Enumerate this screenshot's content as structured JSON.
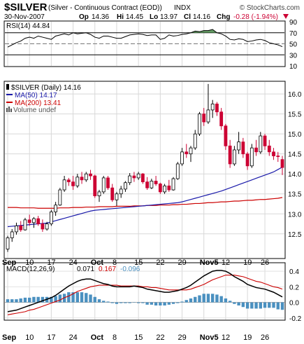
{
  "header": {
    "symbol": "$SILVER",
    "description": "(Silver - Continuous Contract (EOD))",
    "exchange": "INDX",
    "watermark": "© StockCharts.com",
    "date": "30-Nov-2007",
    "quote": {
      "open_label": "Op",
      "open": "14.36",
      "high_label": "Hi",
      "high": "14.45",
      "low_label": "Lo",
      "low": "13.97",
      "close_label": "Cl",
      "close": "14.16",
      "chg_label": "Chg",
      "chg": "-0.28 (-1.94%)",
      "chg_icon": "down-triangle-icon"
    }
  },
  "x_axis": {
    "labels": [
      "Sep",
      "10",
      "17",
      "24",
      "Oct",
      "8",
      "15",
      "22",
      "29",
      "Nov5",
      "12",
      "19",
      "26"
    ],
    "label_dates": [
      "2007-08-31",
      "2007-09-10",
      "2007-09-17",
      "2007-09-24",
      "2007-10-01",
      "2007-10-08",
      "2007-10-15",
      "2007-10-22",
      "2007-10-29",
      "2007-11-05",
      "2007-11-12",
      "2007-11-19",
      "2007-11-26"
    ],
    "bold_labels": [
      "Sep",
      "Oct",
      "Nov5"
    ]
  },
  "chart_data": [
    {
      "type": "line",
      "panel": "RSI",
      "legend": [
        {
          "text": "RSI(14) 44.84",
          "color": "#000000"
        }
      ],
      "ylim": [
        10,
        90
      ],
      "y_ticks": [
        10,
        30,
        50,
        70,
        90
      ],
      "reference_lines": [
        30,
        50,
        70
      ],
      "overbought_fill_color": "#4a8a4a",
      "dates": [
        "2007-08-31",
        "2007-09-04",
        "2007-09-05",
        "2007-09-06",
        "2007-09-07",
        "2007-09-10",
        "2007-09-11",
        "2007-09-12",
        "2007-09-13",
        "2007-09-14",
        "2007-09-17",
        "2007-09-18",
        "2007-09-19",
        "2007-09-20",
        "2007-09-21",
        "2007-09-24",
        "2007-09-25",
        "2007-09-26",
        "2007-09-27",
        "2007-09-28",
        "2007-10-01",
        "2007-10-02",
        "2007-10-03",
        "2007-10-04",
        "2007-10-05",
        "2007-10-08",
        "2007-10-09",
        "2007-10-10",
        "2007-10-11",
        "2007-10-12",
        "2007-10-15",
        "2007-10-16",
        "2007-10-17",
        "2007-10-18",
        "2007-10-19",
        "2007-10-22",
        "2007-10-23",
        "2007-10-24",
        "2007-10-25",
        "2007-10-26",
        "2007-10-29",
        "2007-10-30",
        "2007-10-31",
        "2007-11-01",
        "2007-11-02",
        "2007-11-05",
        "2007-11-06",
        "2007-11-07",
        "2007-11-08",
        "2007-11-09",
        "2007-11-12",
        "2007-11-13",
        "2007-11-14",
        "2007-11-15",
        "2007-11-16",
        "2007-11-19",
        "2007-11-20",
        "2007-11-21",
        "2007-11-23",
        "2007-11-26",
        "2007-11-27",
        "2007-11-28",
        "2007-11-29",
        "2007-11-30"
      ],
      "values": [
        44,
        48,
        52,
        55,
        60,
        62,
        60,
        64,
        62,
        60,
        58,
        64,
        66,
        68,
        66,
        70,
        68,
        69,
        70,
        67,
        62,
        60,
        64,
        64,
        62,
        60,
        60,
        63,
        66,
        67,
        68,
        67,
        65,
        66,
        66,
        58,
        60,
        66,
        64,
        65,
        67,
        68,
        70,
        73,
        72,
        74,
        74,
        76,
        70,
        68,
        64,
        58,
        57,
        59,
        58,
        54,
        55,
        57,
        58,
        56,
        52,
        50,
        48,
        44.84
      ]
    },
    {
      "type": "candlestick",
      "panel": "price",
      "legend": [
        {
          "text": "$SILVER (Daily) 14.16",
          "color": "#000000",
          "icon": "price-swatch-icon"
        },
        {
          "text": "MA(50) 14.17",
          "color": "#1a1aaa"
        },
        {
          "text": "MA(200) 13.41",
          "color": "#cc0000"
        },
        {
          "text": "Volume undef",
          "color": "#000000",
          "icon": "volume-bars-icon"
        }
      ],
      "ylim": [
        11.9,
        16.3
      ],
      "y_ticks": [
        12.5,
        13.0,
        13.5,
        14.0,
        14.5,
        15.0,
        15.5,
        16.0
      ],
      "up_color": "#ffffff",
      "down_color": "#cc0033",
      "ohlc": [
        [
          12.12,
          12.45,
          12.05,
          12.4
        ],
        [
          12.4,
          12.62,
          12.3,
          12.55
        ],
        [
          12.55,
          12.78,
          12.48,
          12.7
        ],
        [
          12.7,
          12.82,
          12.55,
          12.6
        ],
        [
          12.6,
          12.9,
          12.58,
          12.85
        ],
        [
          12.85,
          12.98,
          12.7,
          12.78
        ],
        [
          12.78,
          12.92,
          12.65,
          12.88
        ],
        [
          12.88,
          12.95,
          12.7,
          12.75
        ],
        [
          12.75,
          12.86,
          12.55,
          12.62
        ],
        [
          12.62,
          12.8,
          12.58,
          12.75
        ],
        [
          12.75,
          13.1,
          12.7,
          13.05
        ],
        [
          13.05,
          13.3,
          12.95,
          13.22
        ],
        [
          13.22,
          13.65,
          13.2,
          13.6
        ],
        [
          13.6,
          13.95,
          13.55,
          13.85
        ],
        [
          13.85,
          13.9,
          13.7,
          13.8
        ],
        [
          13.8,
          13.95,
          13.6,
          13.7
        ],
        [
          13.7,
          14.0,
          13.65,
          13.92
        ],
        [
          13.92,
          14.05,
          13.75,
          13.85
        ],
        [
          13.85,
          14.05,
          13.8,
          14.0
        ],
        [
          14.0,
          14.1,
          13.85,
          13.95
        ],
        [
          13.95,
          13.98,
          13.4,
          13.45
        ],
        [
          13.45,
          13.6,
          13.3,
          13.55
        ],
        [
          13.55,
          13.95,
          13.5,
          13.9
        ],
        [
          13.9,
          13.95,
          13.6,
          13.65
        ],
        [
          13.65,
          13.75,
          13.3,
          13.35
        ],
        [
          13.35,
          13.55,
          13.2,
          13.5
        ],
        [
          13.5,
          13.7,
          13.4,
          13.62
        ],
        [
          13.62,
          13.82,
          13.55,
          13.78
        ],
        [
          13.78,
          14.02,
          13.72,
          13.95
        ],
        [
          13.95,
          14.05,
          13.8,
          13.9
        ],
        [
          13.9,
          14.05,
          13.85,
          14.0
        ],
        [
          14.0,
          14.02,
          13.75,
          13.8
        ],
        [
          13.8,
          13.92,
          13.6,
          13.65
        ],
        [
          13.65,
          13.88,
          13.62,
          13.82
        ],
        [
          13.82,
          13.95,
          13.7,
          13.75
        ],
        [
          13.75,
          13.78,
          13.5,
          13.55
        ],
        [
          13.55,
          13.75,
          13.5,
          13.7
        ],
        [
          13.7,
          13.85,
          13.55,
          13.6
        ],
        [
          13.6,
          13.92,
          13.58,
          13.88
        ],
        [
          13.88,
          14.3,
          13.85,
          14.25
        ],
        [
          14.25,
          14.65,
          14.2,
          14.55
        ],
        [
          14.55,
          14.75,
          14.4,
          14.5
        ],
        [
          14.5,
          14.7,
          14.3,
          14.65
        ],
        [
          14.65,
          15.1,
          14.6,
          15.0
        ],
        [
          15.0,
          15.55,
          14.95,
          15.5
        ],
        [
          15.5,
          15.65,
          15.2,
          15.3
        ],
        [
          15.3,
          16.25,
          15.25,
          15.6
        ],
        [
          15.6,
          15.85,
          15.4,
          15.75
        ],
        [
          15.75,
          15.8,
          15.45,
          15.55
        ],
        [
          15.55,
          15.65,
          15.1,
          15.2
        ],
        [
          15.2,
          15.25,
          14.6,
          14.7
        ],
        [
          14.7,
          14.85,
          14.15,
          14.25
        ],
        [
          14.25,
          14.7,
          14.2,
          14.6
        ],
        [
          14.6,
          15.05,
          14.5,
          14.8
        ],
        [
          14.8,
          14.9,
          14.4,
          14.5
        ],
        [
          14.5,
          14.55,
          14.1,
          14.2
        ],
        [
          14.2,
          14.75,
          14.15,
          14.65
        ],
        [
          14.65,
          14.85,
          14.45,
          14.55
        ],
        [
          14.55,
          15.05,
          14.5,
          14.95
        ],
        [
          14.95,
          15.0,
          14.6,
          14.7
        ],
        [
          14.7,
          14.85,
          14.45,
          14.55
        ],
        [
          14.55,
          14.65,
          14.35,
          14.45
        ],
        [
          14.45,
          14.55,
          14.3,
          14.44
        ],
        [
          14.36,
          14.45,
          13.97,
          14.16
        ]
      ],
      "ma50": [
        12.68,
        12.69,
        12.7,
        12.71,
        12.72,
        12.73,
        12.74,
        12.75,
        12.76,
        12.77,
        12.8,
        12.83,
        12.86,
        12.89,
        12.92,
        12.95,
        12.98,
        13.01,
        13.04,
        13.07,
        13.09,
        13.1,
        13.11,
        13.12,
        13.13,
        13.14,
        13.15,
        13.16,
        13.17,
        13.18,
        13.19,
        13.2,
        13.21,
        13.22,
        13.23,
        13.24,
        13.25,
        13.26,
        13.27,
        13.28,
        13.3,
        13.33,
        13.36,
        13.39,
        13.42,
        13.45,
        13.48,
        13.51,
        13.54,
        13.57,
        13.61,
        13.65,
        13.69,
        13.73,
        13.77,
        13.81,
        13.85,
        13.89,
        13.93,
        13.97,
        14.01,
        14.05,
        14.11,
        14.17
      ],
      "ma200": [
        13.16,
        13.16,
        13.16,
        13.15,
        13.15,
        13.15,
        13.15,
        13.14,
        13.14,
        13.14,
        13.14,
        13.14,
        13.15,
        13.15,
        13.15,
        13.16,
        13.16,
        13.16,
        13.17,
        13.17,
        13.17,
        13.18,
        13.18,
        13.18,
        13.18,
        13.19,
        13.19,
        13.19,
        13.19,
        13.2,
        13.2,
        13.2,
        13.21,
        13.21,
        13.21,
        13.22,
        13.22,
        13.22,
        13.23,
        13.23,
        13.24,
        13.24,
        13.25,
        13.26,
        13.26,
        13.27,
        13.28,
        13.28,
        13.29,
        13.3,
        13.3,
        13.31,
        13.32,
        13.32,
        13.33,
        13.34,
        13.34,
        13.35,
        13.36,
        13.36,
        13.37,
        13.38,
        13.39,
        13.41
      ]
    },
    {
      "type": "line",
      "panel": "MACD",
      "legend": [
        {
          "text": "MACD(12,26,9)",
          "color": "#000000"
        },
        {
          "text": "0.071",
          "color": "#000000"
        },
        {
          "text": "0.167",
          "color": "#cc0000"
        },
        {
          "text": "-0.096",
          "color": "#4a90c0"
        }
      ],
      "ylim": [
        -0.22,
        0.5
      ],
      "y_ticks": [
        -0.2,
        0.0,
        0.2,
        0.4
      ],
      "series": [
        {
          "name": "MACD",
          "color": "#000000",
          "values": [
            -0.12,
            -0.11,
            -0.1,
            -0.08,
            -0.06,
            -0.04,
            -0.02,
            0.0,
            0.02,
            0.04,
            0.06,
            0.09,
            0.13,
            0.17,
            0.21,
            0.24,
            0.27,
            0.29,
            0.3,
            0.3,
            0.28,
            0.26,
            0.24,
            0.23,
            0.21,
            0.2,
            0.2,
            0.2,
            0.2,
            0.21,
            0.2,
            0.19,
            0.17,
            0.16,
            0.15,
            0.14,
            0.13,
            0.13,
            0.14,
            0.15,
            0.17,
            0.19,
            0.22,
            0.26,
            0.3,
            0.34,
            0.37,
            0.4,
            0.41,
            0.41,
            0.4,
            0.37,
            0.33,
            0.3,
            0.27,
            0.23,
            0.21,
            0.19,
            0.18,
            0.17,
            0.15,
            0.13,
            0.1,
            0.07
          ]
        },
        {
          "name": "Signal",
          "color": "#cc0000",
          "values": [
            -0.16,
            -0.15,
            -0.14,
            -0.13,
            -0.12,
            -0.1,
            -0.09,
            -0.07,
            -0.05,
            -0.03,
            -0.01,
            0.01,
            0.03,
            0.06,
            0.08,
            0.11,
            0.14,
            0.16,
            0.18,
            0.2,
            0.21,
            0.22,
            0.22,
            0.22,
            0.22,
            0.22,
            0.21,
            0.21,
            0.21,
            0.21,
            0.21,
            0.2,
            0.2,
            0.19,
            0.19,
            0.18,
            0.17,
            0.16,
            0.16,
            0.16,
            0.16,
            0.16,
            0.17,
            0.19,
            0.21,
            0.23,
            0.26,
            0.29,
            0.31,
            0.33,
            0.35,
            0.35,
            0.35,
            0.34,
            0.33,
            0.31,
            0.29,
            0.27,
            0.26,
            0.24,
            0.22,
            0.2,
            0.19,
            0.17
          ]
        },
        {
          "name": "Histogram",
          "color": "#4a90c0",
          "type": "bar",
          "values": [
            0.04,
            0.04,
            0.04,
            0.05,
            0.06,
            0.06,
            0.07,
            0.07,
            0.07,
            0.07,
            0.07,
            0.08,
            0.1,
            0.11,
            0.13,
            0.13,
            0.13,
            0.13,
            0.12,
            0.1,
            0.07,
            0.04,
            0.02,
            0.01,
            -0.01,
            -0.02,
            -0.01,
            -0.01,
            -0.01,
            0.0,
            -0.01,
            -0.01,
            -0.03,
            -0.03,
            -0.04,
            -0.04,
            -0.04,
            -0.03,
            -0.02,
            -0.01,
            0.01,
            0.03,
            0.05,
            0.07,
            0.09,
            0.11,
            0.11,
            0.11,
            0.1,
            0.08,
            0.05,
            0.02,
            -0.02,
            -0.04,
            -0.06,
            -0.08,
            -0.08,
            -0.08,
            -0.08,
            -0.07,
            -0.07,
            -0.07,
            -0.09,
            -0.096
          ]
        }
      ]
    }
  ]
}
